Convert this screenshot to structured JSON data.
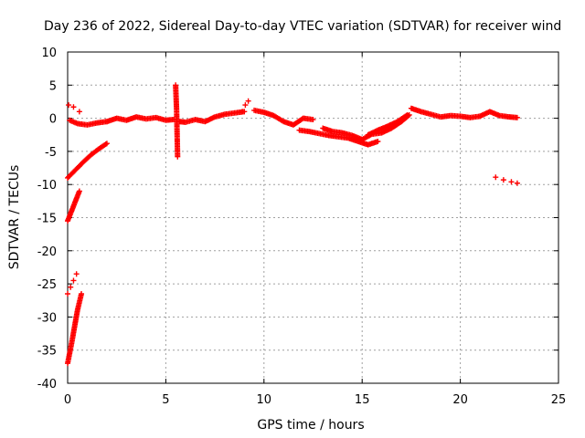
{
  "chart_data": {
    "type": "scatter",
    "title": "Day 236 of 2022, Sidereal Day-to-day VTEC variation (SDTVAR) for receiver wind",
    "xlabel": "GPS time / hours",
    "ylabel": "SDTVAR / TECUs",
    "xlim": [
      0,
      25
    ],
    "ylim": [
      -40,
      10
    ],
    "xticks": [
      0,
      5,
      10,
      15,
      20,
      25
    ],
    "yticks": [
      10,
      5,
      0,
      -5,
      -10,
      -15,
      -20,
      -25,
      -30,
      -35,
      -40
    ],
    "grid": true,
    "marker": "+",
    "series": [
      {
        "name": "SDTVAR",
        "color": "#ff0000",
        "segments": [
          {
            "x": [
              0.05,
              0.3,
              0.6
            ],
            "y": [
              2.0,
              1.7,
              1.0
            ]
          },
          {
            "x": [
              0.1,
              0.5,
              1.0,
              1.5,
              2.0
            ],
            "y": [
              -0.3,
              -0.8,
              -1.0,
              -0.7,
              -0.5
            ]
          },
          {
            "x": [
              0.0,
              0.4,
              0.8,
              1.2,
              1.6,
              2.0
            ],
            "y": [
              -9.0,
              -7.8,
              -6.6,
              -5.5,
              -4.6,
              -3.8
            ]
          },
          {
            "x": [
              0.0,
              0.2,
              0.4,
              0.6
            ],
            "y": [
              -15.5,
              -14.0,
              -12.5,
              -11.0
            ]
          },
          {
            "x": [
              0.0,
              0.15,
              0.3,
              0.45
            ],
            "y": [
              -26.5,
              -25.5,
              -24.5,
              -23.5
            ]
          },
          {
            "x": [
              0.0,
              0.2,
              0.35,
              0.5,
              0.7
            ],
            "y": [
              -37.0,
              -34.0,
              -31.5,
              -29.0,
              -26.5
            ]
          },
          {
            "x": [
              2.0,
              2.5,
              3.0,
              3.5,
              4.0,
              4.5,
              5.0,
              5.4
            ],
            "y": [
              -0.5,
              0.0,
              -0.3,
              0.2,
              -0.1,
              0.1,
              -0.3,
              -0.2
            ]
          },
          {
            "x": [
              5.5,
              5.55,
              5.6
            ],
            "y": [
              5.0,
              1.2,
              -5.8
            ]
          },
          {
            "x": [
              5.7,
              6.0,
              6.5,
              7.0,
              7.5,
              8.0,
              8.5,
              9.0
            ],
            "y": [
              -0.5,
              -0.6,
              -0.2,
              -0.5,
              0.2,
              0.6,
              0.8,
              1.0
            ]
          },
          {
            "x": [
              8.9,
              9.05,
              9.2
            ],
            "y": [
              1.0,
              2.0,
              2.6
            ]
          },
          {
            "x": [
              9.5,
              10.0,
              10.5,
              11.0,
              11.5,
              12.0,
              12.5
            ],
            "y": [
              1.2,
              0.9,
              0.4,
              -0.5,
              -1.0,
              0.0,
              -0.2
            ]
          },
          {
            "x": [
              11.8,
              12.3,
              12.8,
              13.3,
              13.8,
              14.3,
              14.8,
              15.3,
              15.8
            ],
            "y": [
              -1.8,
              -2.0,
              -2.3,
              -2.6,
              -2.8,
              -3.0,
              -3.5,
              -4.0,
              -3.5
            ]
          },
          {
            "x": [
              13.0,
              13.5,
              14.0,
              14.5,
              15.0,
              15.5,
              16.0,
              16.5,
              17.0,
              17.4
            ],
            "y": [
              -1.5,
              -2.0,
              -2.2,
              -2.6,
              -3.2,
              -2.4,
              -2.2,
              -1.5,
              -0.5,
              0.5
            ]
          },
          {
            "x": [
              15.3,
              15.8,
              16.3,
              16.8,
              17.3
            ],
            "y": [
              -2.5,
              -1.8,
              -1.2,
              -0.5,
              0.5
            ]
          },
          {
            "x": [
              17.5,
              18.0,
              18.5,
              19.0,
              19.5,
              20.0,
              20.5,
              21.0
            ],
            "y": [
              1.5,
              1.0,
              0.6,
              0.2,
              0.4,
              0.3,
              0.1,
              0.3
            ]
          },
          {
            "x": [
              21.0,
              21.5,
              22.0,
              22.5,
              22.9
            ],
            "y": [
              0.3,
              1.0,
              0.4,
              0.2,
              0.1
            ]
          },
          {
            "x": [
              21.8,
              22.2,
              22.6,
              22.9
            ],
            "y": [
              -8.9,
              -9.3,
              -9.6,
              -9.8
            ]
          }
        ]
      }
    ]
  }
}
